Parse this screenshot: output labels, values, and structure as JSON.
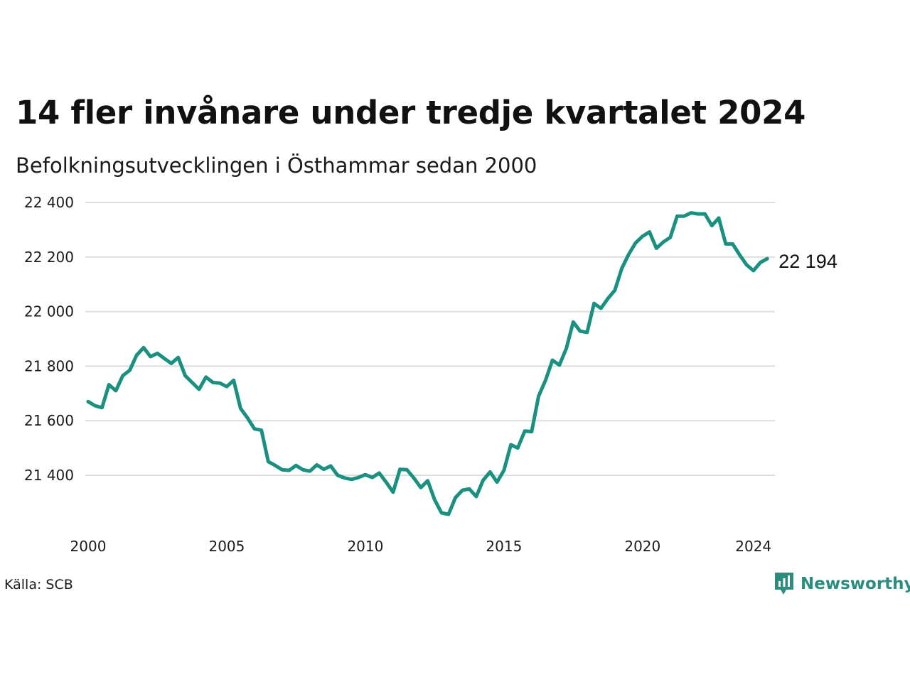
{
  "chart_data": {
    "type": "line",
    "title": "14 fler invånare under tredje kvartalet 2024",
    "subtitle": "Befolkningsutvecklingen i Östhammar sedan 2000",
    "xlabel": "",
    "ylabel": "",
    "ylim": [
      21230,
      22420
    ],
    "xlim": [
      2000,
      2024.75
    ],
    "grid": true,
    "color": "#1a9080",
    "y_ticks": [
      {
        "value": 21400,
        "label": "21 400"
      },
      {
        "value": 21600,
        "label": "21 600"
      },
      {
        "value": 21800,
        "label": "21 800"
      },
      {
        "value": 22000,
        "label": "22 000"
      },
      {
        "value": 22200,
        "label": "22 200"
      },
      {
        "value": 22400,
        "label": "22 400"
      }
    ],
    "x_ticks": [
      {
        "value": 2000,
        "label": "2000"
      },
      {
        "value": 2005,
        "label": "2005"
      },
      {
        "value": 2010,
        "label": "2010"
      },
      {
        "value": 2015,
        "label": "2015"
      },
      {
        "value": 2020,
        "label": "2020"
      },
      {
        "value": 2024,
        "label": "2024"
      }
    ],
    "start_year": 2000,
    "values": [
      21670,
      21655,
      21648,
      21732,
      21710,
      21765,
      21785,
      21840,
      21868,
      21835,
      21847,
      21828,
      21810,
      21832,
      21765,
      21740,
      21715,
      21760,
      21740,
      21738,
      21725,
      21748,
      21645,
      21610,
      21570,
      21565,
      21450,
      21436,
      21420,
      21418,
      21436,
      21420,
      21415,
      21438,
      21422,
      21434,
      21400,
      21390,
      21385,
      21392,
      21402,
      21392,
      21408,
      21375,
      21338,
      21422,
      21420,
      21390,
      21355,
      21380,
      21310,
      21262,
      21257,
      21318,
      21345,
      21350,
      21322,
      21382,
      21412,
      21375,
      21418,
      21512,
      21500,
      21562,
      21560,
      21690,
      21748,
      21822,
      21804,
      21865,
      21962,
      21928,
      21924,
      22030,
      22012,
      22048,
      22078,
      22158,
      22210,
      22252,
      22276,
      22292,
      22232,
      22255,
      22272,
      22350,
      22350,
      22362,
      22358,
      22358,
      22315,
      22343,
      22248,
      22248,
      22208,
      22172,
      22150,
      22180,
      22194
    ],
    "end_label": "22 194",
    "source": "Källa: SCB",
    "logo_text": "Newsworthy"
  }
}
